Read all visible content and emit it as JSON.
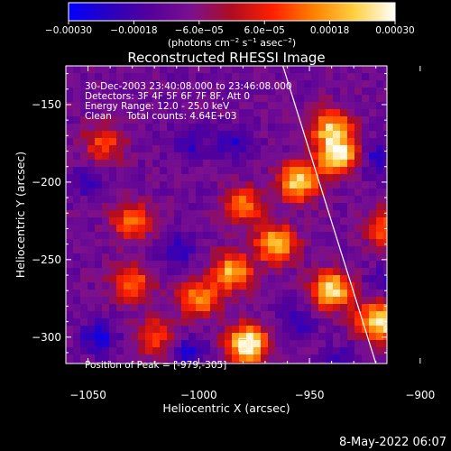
{
  "chart_data": {
    "type": "heatmap",
    "title": "Reconstructed RHESSI Image",
    "xlabel": "Heliocentric X (arcsec)",
    "ylabel": "Heliocentric Y (arcsec)",
    "xlim": [
      -1060,
      -915
    ],
    "ylim": [
      -317,
      -125
    ],
    "x_ticks": [
      -1050,
      -1000,
      -950,
      -900
    ],
    "y_ticks": [
      -300,
      -250,
      -200,
      -150
    ],
    "x_tick_labels": [
      "−1050",
      "−1000",
      "−950",
      "−900"
    ],
    "y_tick_labels": [
      "−300",
      "−250",
      "−200",
      "−150"
    ],
    "colorbar": {
      "range": [
        -0.0003,
        0.0003
      ],
      "tick_values": [
        -0.0003,
        -0.00018,
        -6e-05,
        6e-05,
        0.00018,
        0.0003
      ],
      "tick_labels": [
        "−0.00030",
        "−0.00018",
        "−6.0e−05",
        "6.0e−05",
        "0.00018",
        "0.00030"
      ],
      "units_parts": [
        "(photons cm",
        "−2",
        " s",
        "−1",
        " asec",
        "−2",
        ")"
      ],
      "colors": [
        "#0000ff",
        "#2a00c0",
        "#55009a",
        "#7a1090",
        "#b00c20",
        "#ff2000",
        "#ff8000",
        "#ffd040",
        "#ffffff"
      ]
    },
    "info_lines": [
      "30-Dec-2003 23:40:08.000 to 23:46:08.000",
      "Detectors: 3F 4F 5F 6F 7F 8F, Att 0",
      "Energy Range: 12.0 - 25.0 keV",
      "Clean     Total counts: 4.64E+03"
    ],
    "peak_label": "Position of Peak = [-979,-305]",
    "peak": [
      -979,
      -305
    ],
    "limb": [
      [
        -962,
        -125
      ],
      [
        -920,
        -317
      ]
    ],
    "hotspots": [
      {
        "x": -978,
        "y": -305,
        "w": 0.95
      },
      {
        "x": -940,
        "y": -270,
        "w": 0.85
      },
      {
        "x": -955,
        "y": -200,
        "w": 0.8
      },
      {
        "x": -965,
        "y": -240,
        "w": 0.75
      },
      {
        "x": -985,
        "y": -258,
        "w": 0.7
      },
      {
        "x": -937,
        "y": -183,
        "w": 0.85
      },
      {
        "x": -940,
        "y": -165,
        "w": 0.7
      },
      {
        "x": -900,
        "y": -260,
        "w": 0.55
      },
      {
        "x": -895,
        "y": -210,
        "w": 0.6
      },
      {
        "x": -893,
        "y": -155,
        "w": 0.55
      },
      {
        "x": -920,
        "y": -290,
        "w": 0.7
      },
      {
        "x": -915,
        "y": -230,
        "w": 0.5
      },
      {
        "x": -910,
        "y": -290,
        "w": 0.5
      },
      {
        "x": -1030,
        "y": -225,
        "w": 0.55
      },
      {
        "x": -1030,
        "y": -265,
        "w": 0.5
      },
      {
        "x": -1043,
        "y": -175,
        "w": 0.45
      },
      {
        "x": -1020,
        "y": -300,
        "w": 0.45
      },
      {
        "x": -980,
        "y": -215,
        "w": 0.55
      },
      {
        "x": -1000,
        "y": -275,
        "w": 0.6
      }
    ],
    "coldspots": [
      {
        "x": -1045,
        "y": -300,
        "w": 0.55
      },
      {
        "x": -1005,
        "y": -310,
        "w": 0.5
      },
      {
        "x": -1050,
        "y": -200,
        "w": 0.35
      },
      {
        "x": -985,
        "y": -175,
        "w": 0.45
      },
      {
        "x": -1005,
        "y": -175,
        "w": 0.4
      },
      {
        "x": -1010,
        "y": -245,
        "w": 0.45
      },
      {
        "x": -955,
        "y": -290,
        "w": 0.4
      },
      {
        "x": -920,
        "y": -185,
        "w": 0.45
      },
      {
        "x": -915,
        "y": -265,
        "w": 0.4
      },
      {
        "x": -935,
        "y": -315,
        "w": 0.35
      }
    ]
  },
  "footer": {
    "timestamp": "8-May-2022 06:07"
  }
}
